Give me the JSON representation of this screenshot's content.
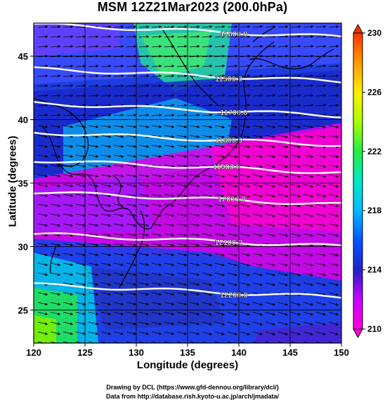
{
  "title": "MSM 12Z21Mar2023 (200.0hPa)",
  "xlabel": "Longitude (degrees)",
  "ylabel": "Latitude  (degrees)",
  "credits": {
    "line1": "Drawing by DCL (https://www.gfd-dennou.org/library/dcl/)",
    "line2": "Data from http://database.rish.kyoto-u.ac.jp/arch/jmadata/"
  },
  "chart_data": {
    "type": "heatmap",
    "xlim": [
      120,
      150
    ],
    "ylim": [
      22.4,
      47.6
    ],
    "x_ticks": [
      120,
      125,
      130,
      135,
      140,
      145,
      150
    ],
    "y_ticks": [
      25,
      30,
      35,
      40,
      45
    ],
    "colorbar": {
      "range": [
        210,
        230
      ],
      "ticks": [
        210,
        214,
        218,
        222,
        226,
        230
      ],
      "colors": [
        "#ff00dd",
        "#cc00ff",
        "#2222cc",
        "#0055ff",
        "#00bbff",
        "#00e8c8",
        "#22ee44",
        "#aaff00",
        "#ffee00",
        "#ff9900",
        "#ff3300"
      ]
    },
    "contours": [
      {
        "label": "11600.0",
        "lat": 47.0,
        "label_lon": 139.5
      },
      {
        "label": "11500.0",
        "lat": 43.5,
        "label_lon": 139.0
      },
      {
        "label": "11700.0",
        "lat": 40.8,
        "label_lon": 139.5
      },
      {
        "label": "11800.0",
        "lat": 38.5,
        "label_lon": 139.0
      },
      {
        "label": "11900.0",
        "lat": 36.3,
        "label_lon": 138.8
      },
      {
        "label": "12000.0",
        "lat": 33.8,
        "label_lon": 139.3
      },
      {
        "label": "12100.0",
        "lat": 30.5,
        "label_lon": 139.0
      },
      {
        "label": "12200.0",
        "lat": 26.5,
        "label_lon": 139.5
      }
    ]
  }
}
